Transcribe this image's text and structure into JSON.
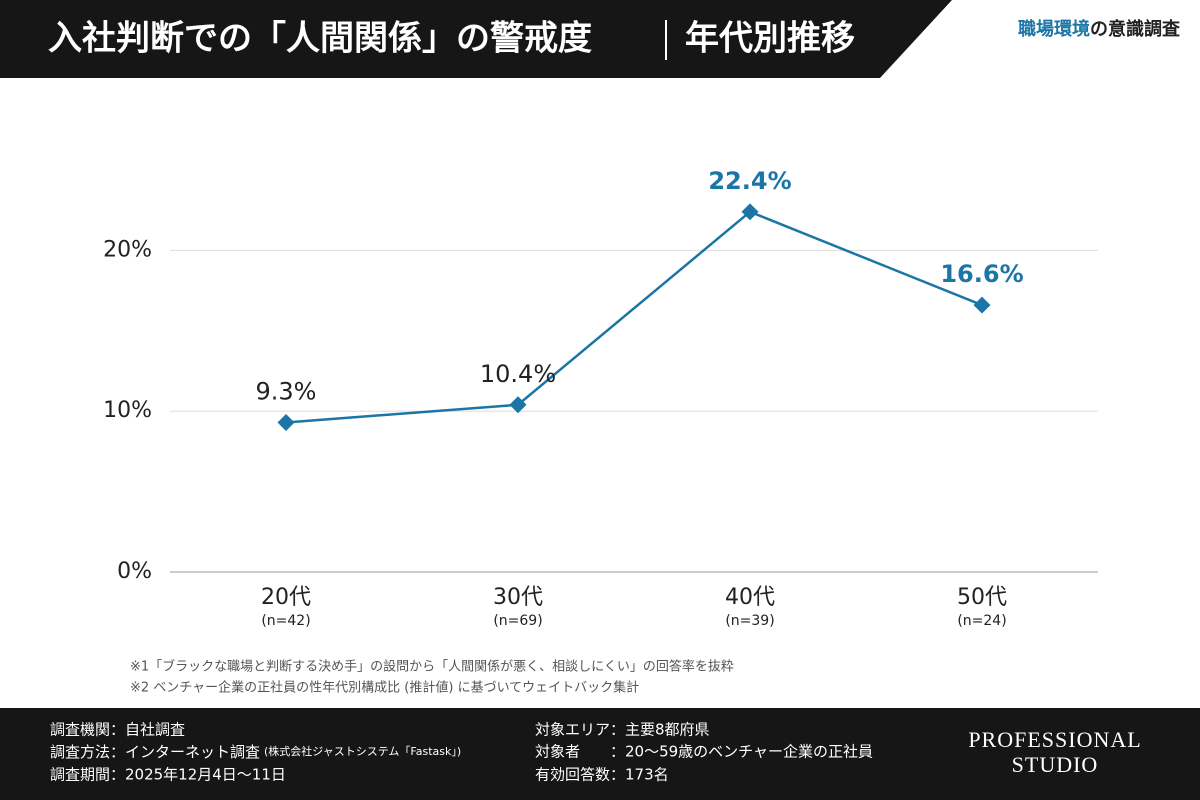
{
  "header": {
    "title": "入社判断での「人間関係」の警戒度",
    "subtitle": "年代別推移",
    "badge_highlight": "職場環境",
    "badge_rest": "の意識調査"
  },
  "chart_data": {
    "type": "line",
    "categories": [
      "20代",
      "30代",
      "40代",
      "50代"
    ],
    "category_notes": [
      "(n=42)",
      "(n=69)",
      "(n=39)",
      "(n=24)"
    ],
    "series": [
      {
        "color": "#1b75a6",
        "values": [
          9.3,
          10.4,
          22.4,
          16.6
        ],
        "value_labels": [
          "9.3%",
          "10.4%",
          "22.4%",
          "16.6%"
        ]
      }
    ],
    "value_label_highlight": [
      false,
      false,
      true,
      true
    ],
    "highlight_color": "#1b75a6",
    "ylim": [
      0,
      25
    ],
    "yticks": [
      {
        "value": 0,
        "label": "0%"
      },
      {
        "value": 10,
        "label": "10%"
      },
      {
        "value": 20,
        "label": "20%"
      }
    ],
    "grid": true
  },
  "notes": [
    "※1「ブラックな職場と判断する決め手」の設問から「人間関係が悪く、相談しにくい」の回答率を抜粋",
    "※2 ベンチャー企業の正社員の性年代別構成比 (推計値) に基づいてウェイトバック集計"
  ],
  "footer": {
    "left": [
      "調査機関：自社調査",
      "調査方法：インターネット調査",
      "調査期間：2025年12月4日〜11日"
    ],
    "method_note": "(株式会社ジャストシステム「Fastask」)",
    "right": [
      "対象エリア：主要8都府県",
      "対象者　　：20〜59歳のベンチャー企業の正社員",
      "有効回答数：173名"
    ],
    "logo": [
      "PROFESSIONAL",
      "STUDIO"
    ]
  }
}
